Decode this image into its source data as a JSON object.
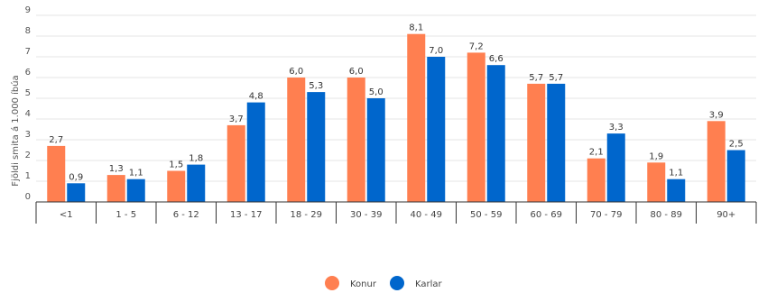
{
  "chart_data": {
    "type": "bar",
    "categories": [
      "<1",
      "1 - 5",
      "6 - 12",
      "13 - 17",
      "18 - 29",
      "30 - 39",
      "40 - 49",
      "50 - 59",
      "60 - 69",
      "70 - 79",
      "80 - 89",
      "90+"
    ],
    "series": [
      {
        "name": "Konur",
        "color": "#FF7F50",
        "values": [
          2.7,
          1.3,
          1.5,
          3.7,
          6.0,
          6.0,
          8.1,
          7.2,
          5.7,
          2.1,
          1.9,
          3.9
        ],
        "labels": [
          "2,7",
          "1,3",
          "1,5",
          "3,7",
          "6,0",
          "6,0",
          "8,1",
          "7,2",
          "5,7",
          "2,1",
          "1,9",
          "3,9"
        ]
      },
      {
        "name": "Karlar",
        "color": "#0066CC",
        "values": [
          0.9,
          1.1,
          1.8,
          4.8,
          5.3,
          5.0,
          7.0,
          6.6,
          5.7,
          3.3,
          1.1,
          2.5
        ],
        "labels": [
          "0,9",
          "1,1",
          "1,8",
          "4,8",
          "5,3",
          "5,0",
          "7,0",
          "6,6",
          "5,7",
          "3,3",
          "1,1",
          "2,5"
        ]
      }
    ],
    "ylabel": "Fjöldi smita á 1.000 íbúa",
    "ylim": [
      0,
      9
    ],
    "yticks": [
      0,
      1,
      2,
      3,
      4,
      5,
      6,
      7,
      8,
      9
    ],
    "grid": true,
    "legend": "bottom-center"
  }
}
